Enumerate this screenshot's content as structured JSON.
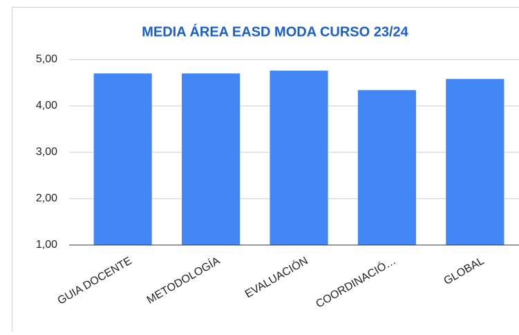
{
  "chart_data": {
    "type": "bar",
    "title": "MEDIA ÁREA EASD MODA CURSO 23/24",
    "categories": [
      "GUIA DOCENTE",
      "METODOLOGÍA",
      "EVALUACIÓN",
      "COORDINACIÓ…",
      "GLOBAL"
    ],
    "values": [
      4.7,
      4.7,
      4.76,
      4.34,
      4.58
    ],
    "color": "#4285f4",
    "ylim": [
      1,
      5
    ],
    "yticks": [
      {
        "value": 1,
        "label": "1,00"
      },
      {
        "value": 2,
        "label": "2,00"
      },
      {
        "value": 3,
        "label": "3,00"
      },
      {
        "value": 4,
        "label": "4,00"
      },
      {
        "value": 5,
        "label": "5,00"
      }
    ],
    "grid": true
  }
}
